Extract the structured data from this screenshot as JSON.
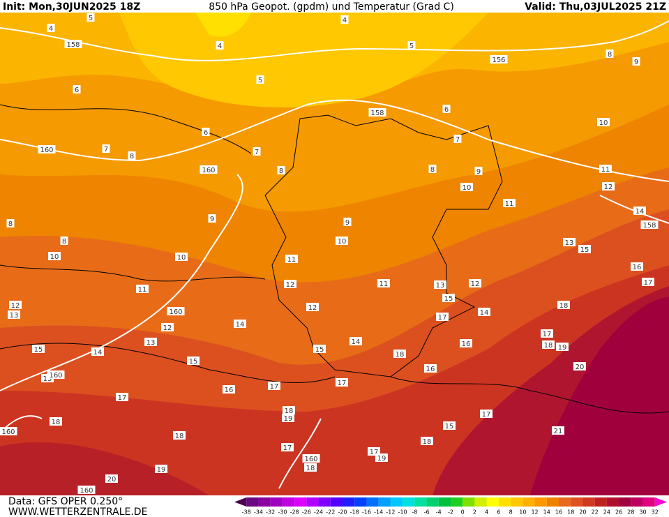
{
  "header": {
    "init": "Init: Mon,30JUN2025 18Z",
    "title": "850 hPa Geopot. (gpdm) und Temperatur (Grad C)",
    "valid": "Valid: Thu,03JUL2025 21Z"
  },
  "map": {
    "contour_labels": [
      4,
      5,
      4,
      4,
      5,
      5,
      6,
      6,
      7,
      8,
      7,
      8,
      6,
      7,
      8,
      9,
      8,
      9,
      10,
      11,
      12,
      14,
      8,
      8,
      9,
      9,
      10,
      10,
      11,
      13,
      15,
      16,
      17,
      10,
      10,
      11,
      11,
      12,
      11,
      13,
      12,
      12,
      13,
      12,
      15,
      14,
      18,
      14,
      17,
      12,
      13,
      16,
      17,
      18,
      19,
      14,
      18,
      15,
      15,
      14,
      15,
      20,
      16,
      15,
      16,
      17,
      17,
      17,
      18,
      19,
      17,
      15,
      18,
      18,
      21,
      18,
      17,
      17,
      19,
      18,
      19,
      20,
      158,
      156,
      158,
      160,
      160,
      158,
      160,
      160,
      160,
      160,
      160
    ]
  },
  "legend": {
    "labels": [
      -38,
      -34,
      -32,
      -30,
      -28,
      -26,
      -24,
      -22,
      -20,
      -18,
      -16,
      -14,
      -12,
      -10,
      -8,
      -6,
      -4,
      -2,
      0,
      2,
      4,
      6,
      8,
      10,
      12,
      14,
      16,
      18,
      20,
      22,
      24,
      26,
      28,
      30,
      32
    ],
    "colors": [
      "#4b0050",
      "#6a0a80",
      "#8a00a0",
      "#a000c0",
      "#c000e0",
      "#dd00ff",
      "#b000ff",
      "#8000ff",
      "#5000ff",
      "#2020ff",
      "#0040ff",
      "#0070ff",
      "#00a0ff",
      "#00c8ff",
      "#00e0e0",
      "#00e0a0",
      "#00d070",
      "#00c040",
      "#20d020",
      "#80e000",
      "#d0f000",
      "#ffff00",
      "#ffe000",
      "#ffc800",
      "#ffb000",
      "#ff9800",
      "#f08000",
      "#e86820",
      "#e05020",
      "#d03820",
      "#c02020",
      "#b01030",
      "#a00040",
      "#c00060",
      "#e00080",
      "#ff00d0"
    ]
  },
  "footer": {
    "data": "Data: GFS OPER 0.250°",
    "site": "WWW.WETTERZENTRALE.DE"
  }
}
